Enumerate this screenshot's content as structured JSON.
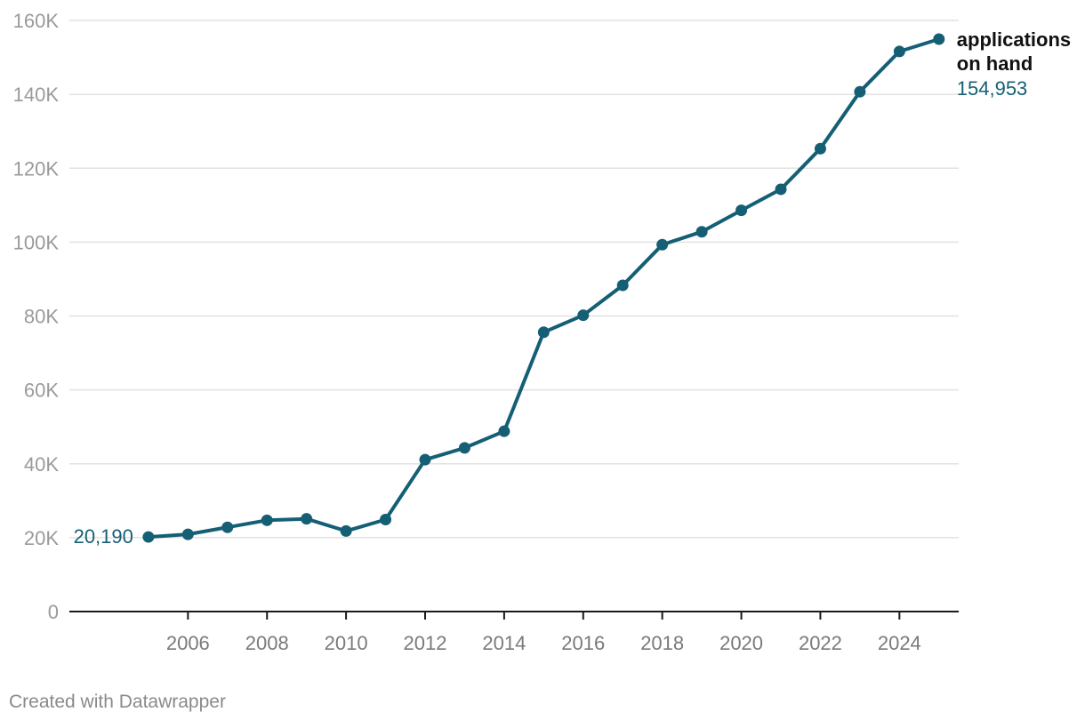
{
  "chart_data": {
    "type": "line",
    "title": "",
    "xlabel": "",
    "ylabel": "",
    "xlim": [
      2003,
      2025.5
    ],
    "ylim": [
      0,
      160000
    ],
    "grid": true,
    "legend": "none",
    "line_color": "#155f75",
    "y_ticks": [
      {
        "value": 0,
        "label": "0"
      },
      {
        "value": 20000,
        "label": "20K"
      },
      {
        "value": 40000,
        "label": "40K"
      },
      {
        "value": 60000,
        "label": "60K"
      },
      {
        "value": 80000,
        "label": "80K"
      },
      {
        "value": 100000,
        "label": "100K"
      },
      {
        "value": 120000,
        "label": "120K"
      },
      {
        "value": 140000,
        "label": "140K"
      },
      {
        "value": 160000,
        "label": "160K"
      }
    ],
    "x_ticks": [
      {
        "value": 2006,
        "label": "2006"
      },
      {
        "value": 2008,
        "label": "2008"
      },
      {
        "value": 2010,
        "label": "2010"
      },
      {
        "value": 2012,
        "label": "2012"
      },
      {
        "value": 2014,
        "label": "2014"
      },
      {
        "value": 2016,
        "label": "2016"
      },
      {
        "value": 2018,
        "label": "2018"
      },
      {
        "value": 2020,
        "label": "2020"
      },
      {
        "value": 2022,
        "label": "2022"
      },
      {
        "value": 2024,
        "label": "2024"
      }
    ],
    "series": [
      {
        "name": "applications on hand",
        "name_lines": [
          "applications",
          "on hand"
        ],
        "x": [
          2005,
          2006,
          2007,
          2008,
          2009,
          2010,
          2011,
          2012,
          2013,
          2014,
          2015,
          2016,
          2017,
          2018,
          2019,
          2020,
          2021,
          2022,
          2023,
          2024,
          2025
        ],
        "values": [
          20190,
          20900,
          22800,
          24700,
          25100,
          21800,
          24900,
          41100,
          44300,
          48800,
          75600,
          80200,
          88300,
          99300,
          102800,
          108600,
          114300,
          125300,
          140700,
          151600,
          154953
        ],
        "start_label": "20,190",
        "end_label": "154,953"
      }
    ]
  },
  "credit": "Created with Datawrapper"
}
